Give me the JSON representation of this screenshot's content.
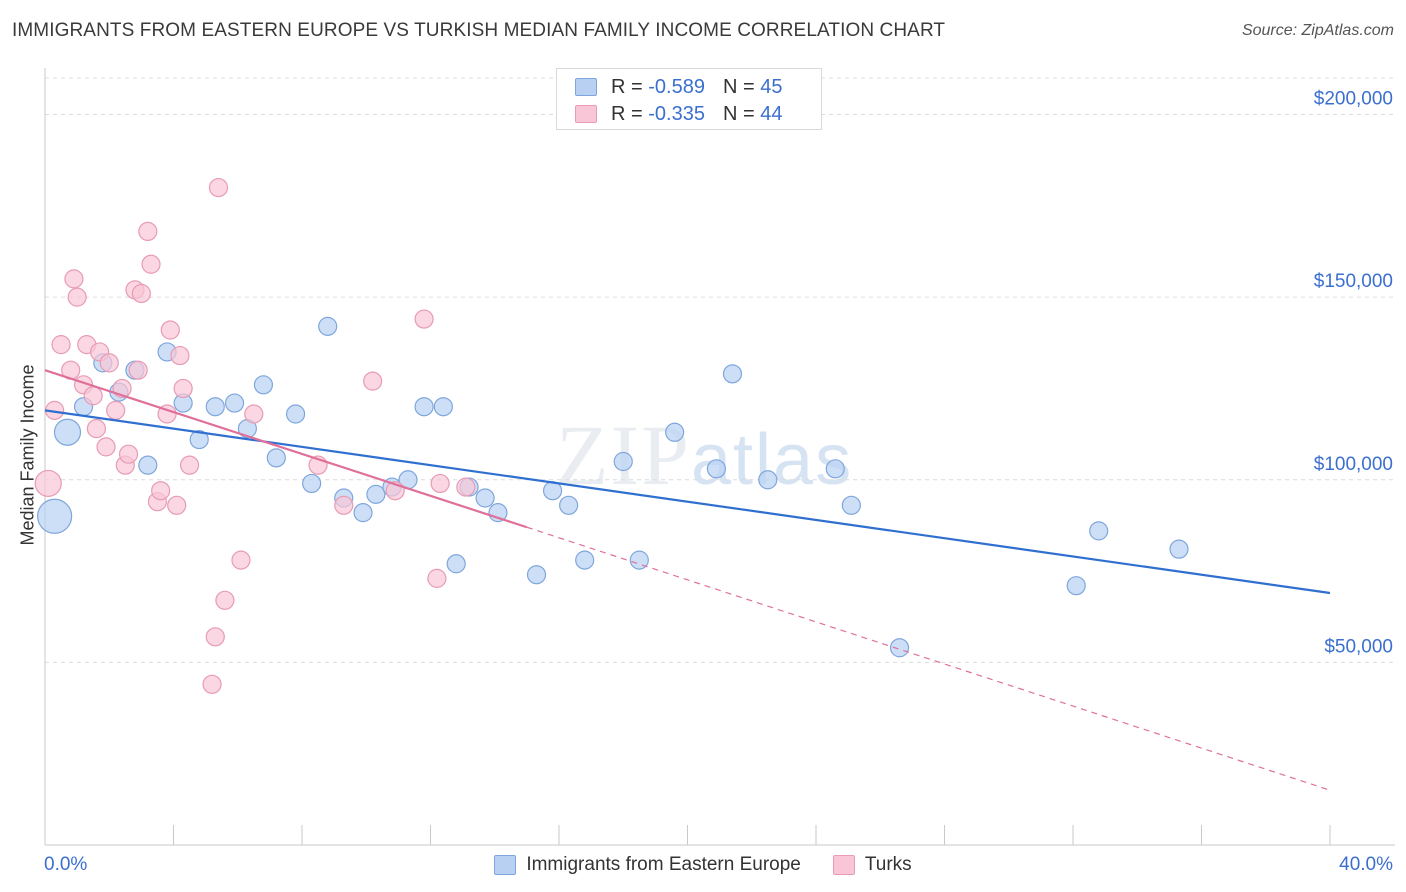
{
  "title": "IMMIGRANTS FROM EASTERN EUROPE VS TURKISH MEDIAN FAMILY INCOME CORRELATION CHART",
  "source": "Source: ZipAtlas.com",
  "watermark": {
    "zip": "ZIP",
    "atlas": "atlas"
  },
  "legend_top": [
    {
      "r_label": "R =",
      "r_value": "-0.589",
      "n_label": "N =",
      "n_value": "45"
    },
    {
      "r_label": "R =",
      "r_value": "-0.335",
      "n_label": "N =",
      "n_value": "44"
    }
  ],
  "colors": {
    "blue_fill": "#b8d1f3",
    "blue_stroke": "#7fa6dc",
    "blue_line": "#2f6fd0",
    "pink_fill": "#f8c6d6",
    "pink_stroke": "#e79bb4",
    "pink_line": "#e0709a",
    "tick_text": "#3b6fcf",
    "grid": "#dcdcdc"
  },
  "chart_data": {
    "type": "scatter",
    "xlabel": "",
    "ylabel": "Median Family Income",
    "xlim": [
      0,
      40
    ],
    "ylim": [
      0,
      210000
    ],
    "x_tick_labels": [
      "0.0%",
      "40.0%"
    ],
    "y_ticks": [
      50000,
      100000,
      150000,
      200000
    ],
    "y_tick_labels": [
      "$50,000",
      "$100,000",
      "$150,000",
      "$200,000"
    ],
    "grid": "horizontal dashed",
    "legend": "bottom-center",
    "series": [
      {
        "name": "Immigrants from Eastern Europe",
        "color": "#b8d1f3",
        "trend": {
          "x": [
            0,
            40
          ],
          "y": [
            119000,
            69000
          ],
          "style": "solid"
        },
        "points": [
          {
            "x": 0.3,
            "y": 90000,
            "s": 3
          },
          {
            "x": 0.7,
            "y": 113000,
            "s": 2
          },
          {
            "x": 1.2,
            "y": 120000,
            "s": 1
          },
          {
            "x": 1.8,
            "y": 132000,
            "s": 1
          },
          {
            "x": 2.3,
            "y": 124000,
            "s": 1
          },
          {
            "x": 2.8,
            "y": 130000,
            "s": 1
          },
          {
            "x": 3.2,
            "y": 104000,
            "s": 1
          },
          {
            "x": 3.8,
            "y": 135000,
            "s": 1
          },
          {
            "x": 4.3,
            "y": 121000,
            "s": 1
          },
          {
            "x": 4.8,
            "y": 111000,
            "s": 1
          },
          {
            "x": 5.3,
            "y": 120000,
            "s": 1
          },
          {
            "x": 5.9,
            "y": 121000,
            "s": 1
          },
          {
            "x": 6.3,
            "y": 114000,
            "s": 1
          },
          {
            "x": 6.8,
            "y": 126000,
            "s": 1
          },
          {
            "x": 7.2,
            "y": 106000,
            "s": 1
          },
          {
            "x": 7.8,
            "y": 118000,
            "s": 1
          },
          {
            "x": 8.3,
            "y": 99000,
            "s": 1
          },
          {
            "x": 8.8,
            "y": 142000,
            "s": 1
          },
          {
            "x": 9.3,
            "y": 95000,
            "s": 1
          },
          {
            "x": 9.9,
            "y": 91000,
            "s": 1
          },
          {
            "x": 10.3,
            "y": 96000,
            "s": 1
          },
          {
            "x": 10.8,
            "y": 98000,
            "s": 1
          },
          {
            "x": 11.3,
            "y": 100000,
            "s": 1
          },
          {
            "x": 11.8,
            "y": 120000,
            "s": 1
          },
          {
            "x": 12.4,
            "y": 120000,
            "s": 1
          },
          {
            "x": 12.8,
            "y": 77000,
            "s": 1
          },
          {
            "x": 13.2,
            "y": 98000,
            "s": 1
          },
          {
            "x": 13.7,
            "y": 95000,
            "s": 1
          },
          {
            "x": 14.1,
            "y": 91000,
            "s": 1
          },
          {
            "x": 15.3,
            "y": 74000,
            "s": 1
          },
          {
            "x": 15.8,
            "y": 97000,
            "s": 1
          },
          {
            "x": 16.3,
            "y": 93000,
            "s": 1
          },
          {
            "x": 16.8,
            "y": 78000,
            "s": 1
          },
          {
            "x": 18.0,
            "y": 105000,
            "s": 1
          },
          {
            "x": 18.5,
            "y": 78000,
            "s": 1
          },
          {
            "x": 19.6,
            "y": 113000,
            "s": 1
          },
          {
            "x": 20.9,
            "y": 103000,
            "s": 1
          },
          {
            "x": 21.4,
            "y": 129000,
            "s": 1
          },
          {
            "x": 22.5,
            "y": 100000,
            "s": 1
          },
          {
            "x": 24.6,
            "y": 103000,
            "s": 1
          },
          {
            "x": 25.1,
            "y": 93000,
            "s": 1
          },
          {
            "x": 26.6,
            "y": 54000,
            "s": 1
          },
          {
            "x": 32.1,
            "y": 71000,
            "s": 1
          },
          {
            "x": 32.8,
            "y": 86000,
            "s": 1
          },
          {
            "x": 35.3,
            "y": 81000,
            "s": 1
          }
        ]
      },
      {
        "name": "Turks",
        "color": "#f8c6d6",
        "trend": {
          "x": [
            0,
            15
          ],
          "y": [
            130000,
            87000
          ],
          "style": "solid",
          "extension": {
            "x": [
              15,
              40
            ],
            "y": [
              87000,
              15000
            ],
            "style": "dashed"
          }
        },
        "points": [
          {
            "x": 0.1,
            "y": 99000,
            "s": 2
          },
          {
            "x": 0.3,
            "y": 119000,
            "s": 1
          },
          {
            "x": 0.5,
            "y": 137000,
            "s": 1
          },
          {
            "x": 0.8,
            "y": 130000,
            "s": 1
          },
          {
            "x": 0.9,
            "y": 155000,
            "s": 1
          },
          {
            "x": 1.0,
            "y": 150000,
            "s": 1
          },
          {
            "x": 1.2,
            "y": 126000,
            "s": 1
          },
          {
            "x": 1.3,
            "y": 137000,
            "s": 1
          },
          {
            "x": 1.5,
            "y": 123000,
            "s": 1
          },
          {
            "x": 1.6,
            "y": 114000,
            "s": 1
          },
          {
            "x": 1.7,
            "y": 135000,
            "s": 1
          },
          {
            "x": 1.9,
            "y": 109000,
            "s": 1
          },
          {
            "x": 2.0,
            "y": 132000,
            "s": 1
          },
          {
            "x": 2.2,
            "y": 119000,
            "s": 1
          },
          {
            "x": 2.4,
            "y": 125000,
            "s": 1
          },
          {
            "x": 2.5,
            "y": 104000,
            "s": 1
          },
          {
            "x": 2.6,
            "y": 107000,
            "s": 1
          },
          {
            "x": 2.8,
            "y": 152000,
            "s": 1
          },
          {
            "x": 2.9,
            "y": 130000,
            "s": 1
          },
          {
            "x": 3.0,
            "y": 151000,
            "s": 1
          },
          {
            "x": 3.2,
            "y": 168000,
            "s": 1
          },
          {
            "x": 3.3,
            "y": 159000,
            "s": 1
          },
          {
            "x": 3.5,
            "y": 94000,
            "s": 1
          },
          {
            "x": 3.6,
            "y": 97000,
            "s": 1
          },
          {
            "x": 3.8,
            "y": 118000,
            "s": 1
          },
          {
            "x": 3.9,
            "y": 141000,
            "s": 1
          },
          {
            "x": 4.1,
            "y": 93000,
            "s": 1
          },
          {
            "x": 4.2,
            "y": 134000,
            "s": 1
          },
          {
            "x": 4.3,
            "y": 125000,
            "s": 1
          },
          {
            "x": 4.5,
            "y": 104000,
            "s": 1
          },
          {
            "x": 5.2,
            "y": 44000,
            "s": 1
          },
          {
            "x": 5.3,
            "y": 57000,
            "s": 1
          },
          {
            "x": 5.4,
            "y": 180000,
            "s": 1
          },
          {
            "x": 5.6,
            "y": 67000,
            "s": 1
          },
          {
            "x": 6.1,
            "y": 78000,
            "s": 1
          },
          {
            "x": 6.5,
            "y": 118000,
            "s": 1
          },
          {
            "x": 8.5,
            "y": 104000,
            "s": 1
          },
          {
            "x": 9.3,
            "y": 93000,
            "s": 1
          },
          {
            "x": 10.2,
            "y": 127000,
            "s": 1
          },
          {
            "x": 10.9,
            "y": 97000,
            "s": 1
          },
          {
            "x": 11.8,
            "y": 144000,
            "s": 1
          },
          {
            "x": 12.2,
            "y": 73000,
            "s": 1
          },
          {
            "x": 12.3,
            "y": 99000,
            "s": 1
          },
          {
            "x": 13.1,
            "y": 98000,
            "s": 1
          }
        ]
      }
    ]
  }
}
